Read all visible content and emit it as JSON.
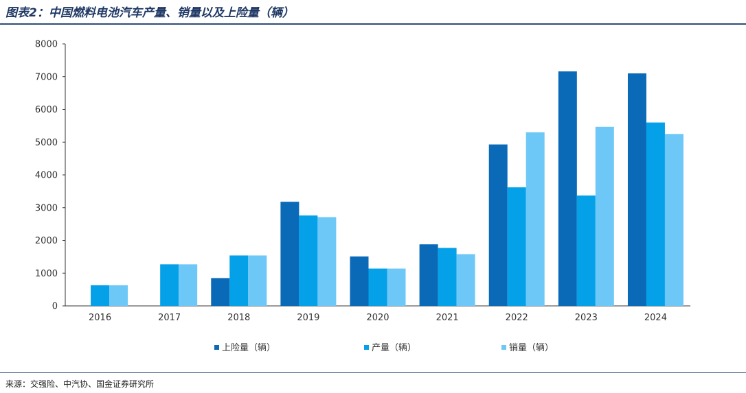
{
  "header": {
    "title": "图表2：中国燃料电池汽车产量、销量以及上险量（辆）"
  },
  "footer": {
    "source": "来源：交强险、中汽协、国金证券研究所"
  },
  "chart_data": {
    "type": "bar",
    "title": "图表2：中国燃料电池汽车产量、销量以及上险量（辆）",
    "xlabel": "",
    "ylabel": "",
    "categories": [
      "2016",
      "2017",
      "2018",
      "2019",
      "2020",
      "2021",
      "2022",
      "2023",
      "2024"
    ],
    "ylim": [
      0,
      8000
    ],
    "yticks": [
      0,
      1000,
      2000,
      3000,
      4000,
      5000,
      6000,
      7000,
      8000
    ],
    "grid": false,
    "legend_position": "bottom",
    "series": [
      {
        "name": "上险量（辆）",
        "color": "#0a6ab7",
        "values": [
          null,
          null,
          850,
          3180,
          1510,
          1880,
          4930,
          7160,
          7100
        ]
      },
      {
        "name": "产量（辆）",
        "color": "#04a0e8",
        "values": [
          630,
          1270,
          1540,
          2760,
          1140,
          1770,
          3620,
          3370,
          5600
        ]
      },
      {
        "name": "销量（辆）",
        "color": "#6ec8f7",
        "values": [
          630,
          1270,
          1540,
          2710,
          1140,
          1580,
          5300,
          5470,
          5250
        ]
      }
    ]
  }
}
